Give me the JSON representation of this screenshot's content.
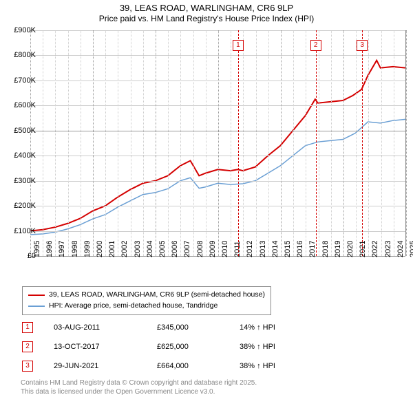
{
  "title": {
    "line1": "39, LEAS ROAD, WARLINGHAM, CR6 9LP",
    "line2": "Price paid vs. HM Land Registry's House Price Index (HPI)"
  },
  "chart": {
    "type": "line",
    "background_color": "#ffffff",
    "grid_color_major": "#999999",
    "grid_color_minor": "#cccccc",
    "axis_font_size": 11,
    "x": {
      "min": 1995,
      "max": 2025,
      "ticks": [
        1995,
        1996,
        1997,
        1998,
        1999,
        2000,
        2001,
        2002,
        2003,
        2004,
        2005,
        2006,
        2007,
        2008,
        2009,
        2010,
        2011,
        2012,
        2013,
        2014,
        2015,
        2016,
        2017,
        2018,
        2019,
        2020,
        2021,
        2022,
        2023,
        2024,
        2025
      ]
    },
    "y": {
      "min": 0,
      "max": 900000,
      "ticks": [
        0,
        100000,
        200000,
        300000,
        400000,
        500000,
        600000,
        700000,
        800000,
        900000
      ],
      "labels": [
        "£0",
        "£100K",
        "£200K",
        "£300K",
        "£400K",
        "£500K",
        "£600K",
        "£700K",
        "£800K",
        "£900K"
      ]
    },
    "series": [
      {
        "name": "39, LEAS ROAD, WARLINGHAM, CR6 9LP (semi-detached house)",
        "color": "#d40000",
        "width": 2,
        "data": [
          [
            1995,
            100000
          ],
          [
            1996,
            105000
          ],
          [
            1997,
            115000
          ],
          [
            1998,
            130000
          ],
          [
            1999,
            150000
          ],
          [
            2000,
            180000
          ],
          [
            2001,
            200000
          ],
          [
            2002,
            235000
          ],
          [
            2003,
            265000
          ],
          [
            2004,
            290000
          ],
          [
            2005,
            300000
          ],
          [
            2006,
            320000
          ],
          [
            2007,
            360000
          ],
          [
            2007.8,
            380000
          ],
          [
            2008.5,
            320000
          ],
          [
            2009,
            330000
          ],
          [
            2010,
            345000
          ],
          [
            2011,
            340000
          ],
          [
            2011.6,
            345000
          ],
          [
            2012,
            340000
          ],
          [
            2013,
            355000
          ],
          [
            2014,
            400000
          ],
          [
            2015,
            440000
          ],
          [
            2016,
            500000
          ],
          [
            2017,
            560000
          ],
          [
            2017.78,
            625000
          ],
          [
            2018,
            610000
          ],
          [
            2019,
            615000
          ],
          [
            2020,
            620000
          ],
          [
            2020.8,
            640000
          ],
          [
            2021.49,
            664000
          ],
          [
            2022,
            720000
          ],
          [
            2022.7,
            780000
          ],
          [
            2023,
            750000
          ],
          [
            2024,
            755000
          ],
          [
            2025,
            750000
          ]
        ]
      },
      {
        "name": "HPI: Average price, semi-detached house, Tandridge",
        "color": "#6a9fd4",
        "width": 1.5,
        "data": [
          [
            1995,
            85000
          ],
          [
            1996,
            88000
          ],
          [
            1997,
            95000
          ],
          [
            1998,
            108000
          ],
          [
            1999,
            125000
          ],
          [
            2000,
            148000
          ],
          [
            2001,
            165000
          ],
          [
            2002,
            195000
          ],
          [
            2003,
            220000
          ],
          [
            2004,
            245000
          ],
          [
            2005,
            253000
          ],
          [
            2006,
            268000
          ],
          [
            2007,
            300000
          ],
          [
            2007.8,
            312000
          ],
          [
            2008.5,
            270000
          ],
          [
            2009,
            275000
          ],
          [
            2010,
            290000
          ],
          [
            2011,
            285000
          ],
          [
            2012,
            288000
          ],
          [
            2013,
            300000
          ],
          [
            2014,
            330000
          ],
          [
            2015,
            360000
          ],
          [
            2016,
            400000
          ],
          [
            2017,
            440000
          ],
          [
            2018,
            455000
          ],
          [
            2019,
            460000
          ],
          [
            2020,
            465000
          ],
          [
            2021,
            490000
          ],
          [
            2022,
            535000
          ],
          [
            2023,
            530000
          ],
          [
            2024,
            540000
          ],
          [
            2025,
            545000
          ]
        ]
      }
    ],
    "events": [
      {
        "n": "1",
        "x": 2011.59,
        "color": "#d40000"
      },
      {
        "n": "2",
        "x": 2017.78,
        "color": "#d40000"
      },
      {
        "n": "3",
        "x": 2021.49,
        "color": "#d40000"
      }
    ],
    "event_marker_top": 14
  },
  "legend": {
    "border_color": "#888888",
    "items": [
      {
        "color": "#d40000",
        "label": "39, LEAS ROAD, WARLINGHAM, CR6 9LP (semi-detached house)"
      },
      {
        "color": "#6a9fd4",
        "label": "HPI: Average price, semi-detached house, Tandridge"
      }
    ]
  },
  "events_table": {
    "color": "#d40000",
    "rows": [
      {
        "n": "1",
        "date": "03-AUG-2011",
        "price": "£345,000",
        "delta": "14% ↑ HPI"
      },
      {
        "n": "2",
        "date": "13-OCT-2017",
        "price": "£625,000",
        "delta": "38% ↑ HPI"
      },
      {
        "n": "3",
        "date": "29-JUN-2021",
        "price": "£664,000",
        "delta": "38% ↑ HPI"
      }
    ]
  },
  "footer": {
    "color": "#888888",
    "line1": "Contains HM Land Registry data © Crown copyright and database right 2025.",
    "line2": "This data is licensed under the Open Government Licence v3.0."
  }
}
